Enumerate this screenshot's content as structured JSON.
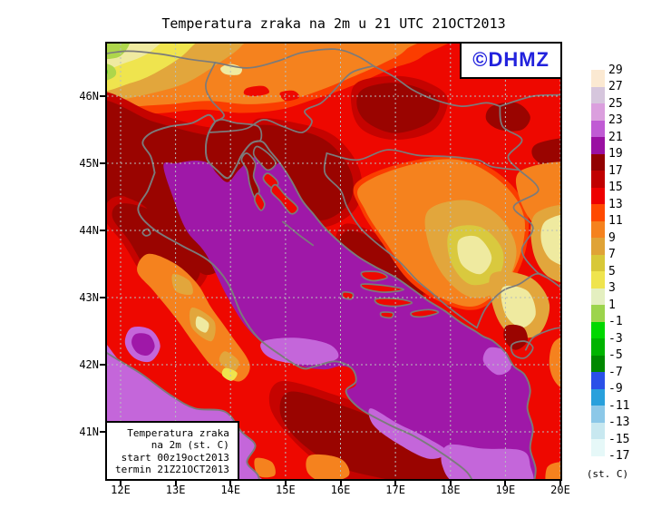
{
  "title": "Temperatura zraka na 2m u 21 UTC 21OCT2013",
  "badge": {
    "text": "©DHMZ",
    "color": "#2222dd"
  },
  "info_box": {
    "lines": [
      "Temperatura zraka",
      "na 2m (st. C)",
      "start 00z19oct2013",
      "termin 21Z21OCT2013"
    ]
  },
  "axes": {
    "lat_ticks": [
      "46N",
      "45N",
      "44N",
      "43N",
      "42N",
      "41N"
    ],
    "lon_ticks": [
      "12E",
      "13E",
      "14E",
      "15E",
      "16E",
      "17E",
      "18E",
      "19E",
      "20E"
    ]
  },
  "colorbar": {
    "unit_label": "(st. C)",
    "boundary_labels": [
      "29",
      "27",
      "25",
      "23",
      "21",
      "19",
      "17",
      "15",
      "13",
      "11",
      "9",
      "7",
      "5",
      "3",
      "1",
      "-1",
      "-3",
      "-5",
      "-7",
      "-9",
      "-11",
      "-13",
      "-15",
      "-17"
    ],
    "swatch_colors": [
      "#fbe9d2",
      "#d6c6dd",
      "#db9fde",
      "#c05bd4",
      "#9a10a2",
      "#920202",
      "#c00000",
      "#ee0000",
      "#ff4a00",
      "#f5821e",
      "#e0a336",
      "#d8c838",
      "#efe44e",
      "#e4efc0",
      "#9cd44c",
      "#00d800",
      "#00b400",
      "#008800",
      "#2a50e8",
      "#28a0dc",
      "#8cc8e8",
      "#c8e8f0",
      "#e6f8f8"
    ]
  },
  "map": {
    "region": "Croatia and the Adriatic",
    "palette": {
      "red": "#ee0800",
      "midred": "#c50300",
      "maroon": "#9a0400",
      "orangered": "#fb3d00",
      "orange": "#f5821e",
      "gold": "#e2a63c",
      "darkyellow": "#d9c93e",
      "yellow": "#efe44e",
      "paleyellow": "#efeaa0",
      "yellowgreen": "#aed64b",
      "green": "#59c832",
      "sea": "#9f18a8",
      "lightsea": "#c466da"
    }
  }
}
